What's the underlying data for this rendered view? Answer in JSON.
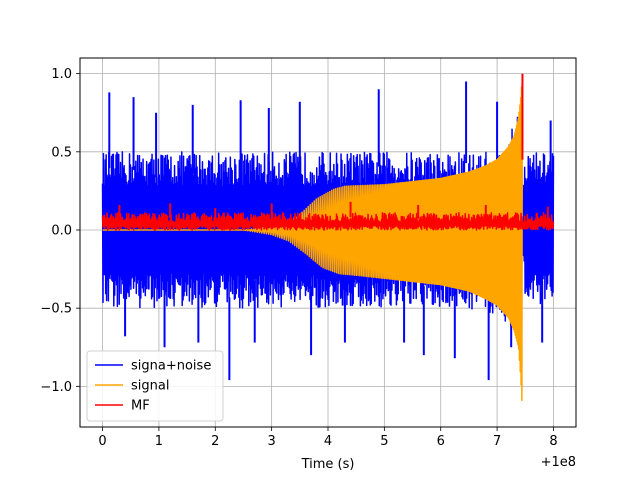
{
  "chart_data": {
    "type": "line",
    "title": "",
    "xlabel": "Time (s)",
    "ylabel": "",
    "x_offset_label": "+1e8",
    "xlim": [
      -0.4,
      8.4
    ],
    "ylim": [
      -1.26,
      1.1
    ],
    "grid": true,
    "legend_position": "lower-left",
    "x_ticks": [
      {
        "value": 0,
        "label": "0"
      },
      {
        "value": 1,
        "label": "1"
      },
      {
        "value": 2,
        "label": "2"
      },
      {
        "value": 3,
        "label": "3"
      },
      {
        "value": 4,
        "label": "4"
      },
      {
        "value": 5,
        "label": "5"
      },
      {
        "value": 6,
        "label": "6"
      },
      {
        "value": 7,
        "label": "7"
      },
      {
        "value": 8,
        "label": "8"
      }
    ],
    "y_ticks": [
      {
        "value": 1.0,
        "label": "1.0"
      },
      {
        "value": 0.5,
        "label": "0.5"
      },
      {
        "value": 0.0,
        "label": "0.0"
      },
      {
        "value": -0.5,
        "label": "−0.5"
      },
      {
        "value": -1.0,
        "label": "−1.0"
      }
    ],
    "series": [
      {
        "name": "signa+noise",
        "color": "#0000ff",
        "style": "noise-band",
        "x_range": [
          0,
          8
        ],
        "upper": {
          "x": [
            0,
            3,
            3.5,
            4,
            5,
            6,
            6.5,
            7,
            7.2,
            7.4,
            7.45,
            7.5,
            8
          ],
          "y": [
            0.5,
            0.5,
            0.5,
            0.5,
            0.5,
            0.5,
            0.5,
            0.5,
            0.55,
            0.85,
            0.25,
            0.5,
            0.5
          ]
        },
        "lower": {
          "x": [
            0,
            3,
            3.5,
            4,
            5,
            6,
            6.5,
            7,
            7.2,
            7.4,
            7.45,
            7.5,
            8
          ],
          "y": [
            -0.5,
            -0.5,
            -0.5,
            -0.5,
            -0.5,
            -0.5,
            -0.5,
            -0.55,
            -0.6,
            -0.7,
            -0.05,
            -0.5,
            -0.5
          ]
        },
        "spikes": [
          {
            "x": 0.12,
            "y": 0.88
          },
          {
            "x": 0.55,
            "y": 0.85
          },
          {
            "x": 0.95,
            "y": 0.75
          },
          {
            "x": 1.6,
            "y": 0.8
          },
          {
            "x": 2.45,
            "y": 0.83
          },
          {
            "x": 2.95,
            "y": 0.78
          },
          {
            "x": 3.5,
            "y": 0.82
          },
          {
            "x": 4.9,
            "y": 0.9
          },
          {
            "x": 6.45,
            "y": 0.95
          },
          {
            "x": 7.0,
            "y": 0.82
          },
          {
            "x": 7.95,
            "y": 0.7
          },
          {
            "x": 0.4,
            "y": -0.68
          },
          {
            "x": 1.1,
            "y": -0.75
          },
          {
            "x": 1.7,
            "y": -0.72
          },
          {
            "x": 2.25,
            "y": -0.96
          },
          {
            "x": 2.7,
            "y": -0.72
          },
          {
            "x": 3.7,
            "y": -0.8
          },
          {
            "x": 4.3,
            "y": -0.72
          },
          {
            "x": 5.35,
            "y": -0.72
          },
          {
            "x": 5.7,
            "y": -0.8
          },
          {
            "x": 6.25,
            "y": -0.82
          },
          {
            "x": 6.85,
            "y": -0.96
          },
          {
            "x": 7.25,
            "y": -0.75
          },
          {
            "x": 7.8,
            "y": -0.72
          }
        ]
      },
      {
        "name": "signal",
        "color": "#ffa500",
        "style": "chirp-envelope",
        "x_range": [
          0,
          7.45
        ],
        "upper": {
          "x": [
            0,
            2.5,
            3.2,
            3.5,
            3.8,
            4.1,
            4.3,
            5,
            6,
            6.5,
            6.8,
            7.0,
            7.2,
            7.3,
            7.38,
            7.42,
            7.45
          ],
          "y": [
            0.0,
            0.0,
            0.03,
            0.1,
            0.2,
            0.26,
            0.28,
            0.29,
            0.33,
            0.37,
            0.41,
            0.45,
            0.53,
            0.6,
            0.72,
            0.85,
            1.0
          ]
        },
        "lower": {
          "x": [
            0,
            2.5,
            3.0,
            3.3,
            3.6,
            3.9,
            4.2,
            4.5,
            5,
            6,
            6.5,
            6.8,
            7.0,
            7.2,
            7.3,
            7.38,
            7.42,
            7.45
          ],
          "y": [
            0.0,
            0.0,
            -0.03,
            -0.07,
            -0.15,
            -0.24,
            -0.28,
            -0.29,
            -0.31,
            -0.35,
            -0.39,
            -0.44,
            -0.48,
            -0.56,
            -0.64,
            -0.75,
            -0.95,
            -1.16
          ]
        }
      },
      {
        "name": "MF",
        "color": "#ff0000",
        "style": "noise-band",
        "x_range": [
          0,
          8
        ],
        "upper": {
          "x": [
            0,
            8
          ],
          "y": [
            0.11,
            0.11
          ]
        },
        "lower": {
          "x": [
            0,
            8
          ],
          "y": [
            0.0,
            0.0
          ]
        },
        "spikes": [
          {
            "x": 0.3,
            "y": 0.16
          },
          {
            "x": 1.2,
            "y": 0.17
          },
          {
            "x": 2.0,
            "y": 0.14
          },
          {
            "x": 3.0,
            "y": 0.17
          },
          {
            "x": 4.4,
            "y": 0.18
          },
          {
            "x": 5.6,
            "y": 0.16
          },
          {
            "x": 6.8,
            "y": 0.16
          },
          {
            "x": 7.45,
            "y": 1.0
          },
          {
            "x": 7.9,
            "y": 0.15
          }
        ]
      }
    ]
  }
}
